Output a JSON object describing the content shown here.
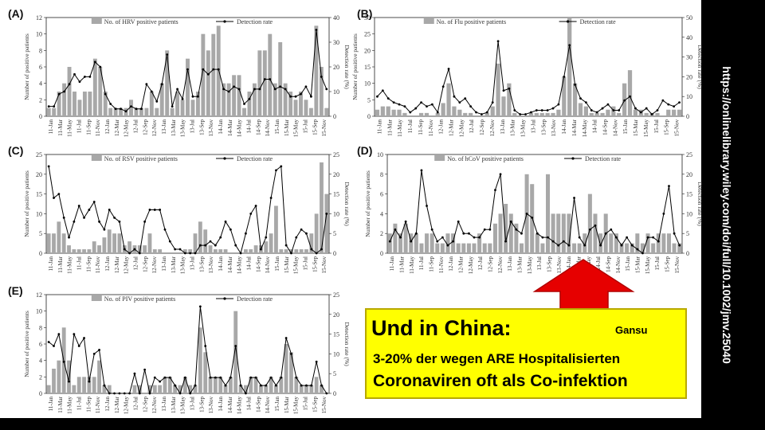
{
  "chart_data": [
    {
      "type": "bar+line",
      "panel_label": "(A)",
      "bar_legend": "No. of HRV positive patients",
      "line_legend": "Detection rate",
      "ylabel_left": "Number of positive patients",
      "ylabel_right": "Detection rate (%)",
      "ylim_left": [
        0,
        12
      ],
      "yticks_left": [
        0,
        2,
        4,
        6,
        8,
        10,
        12
      ],
      "ylim_right": [
        0,
        40
      ],
      "yticks_right": [
        0,
        10,
        20,
        30,
        40
      ],
      "x_tick_labels": [
        "11-Jan",
        "11-Mar",
        "11-May",
        "11-Jul",
        "11-Sep",
        "11-Nov",
        "12-Jan",
        "12-Mar",
        "12-May",
        "12-Jul",
        "12-Sep",
        "12-Nov",
        "13-Jan",
        "13-Mar",
        "13-May",
        "13-Jul",
        "13-Sep",
        "13-Nov",
        "14-Jan",
        "14-Mar",
        "14-May",
        "14-Jul",
        "14-Sep",
        "14-Nov",
        "15-Jan",
        "15-Mar",
        "15-May",
        "15-Jul",
        "15-Sep",
        "15-Nov"
      ],
      "bars": [
        1,
        1,
        3,
        4,
        6,
        3,
        2,
        3,
        3,
        7,
        6,
        3,
        1,
        1,
        1,
        1,
        2,
        1,
        1,
        1,
        3,
        1,
        4,
        8,
        1,
        3,
        2,
        7,
        2,
        3,
        10,
        8,
        10,
        11,
        4,
        4,
        5,
        5,
        1,
        3,
        4,
        8,
        8,
        10,
        4,
        9,
        4,
        3,
        2,
        3,
        2,
        1,
        11,
        6,
        1
      ],
      "line": [
        4,
        4,
        9,
        10,
        13,
        17,
        14,
        16,
        16,
        22,
        20,
        9,
        5,
        3,
        3,
        2,
        4,
        3,
        3,
        13,
        10,
        6,
        13,
        25,
        4,
        11,
        7,
        19,
        8,
        8,
        19,
        17,
        19,
        19,
        11,
        10,
        12,
        11,
        5,
        7,
        11,
        11,
        15,
        15,
        11,
        12,
        11,
        8,
        8,
        9,
        12,
        8,
        35,
        16,
        11
      ]
    },
    {
      "type": "bar+line",
      "panel_label": "(B)",
      "bar_legend": "No. of Flu positive patients",
      "line_legend": "Detection rate",
      "ylabel_left": "Number of positive patients",
      "ylabel_right": "Detection rate (%)",
      "ylim_left": [
        0,
        30
      ],
      "yticks_left": [
        0,
        5,
        10,
        15,
        20,
        25,
        30
      ],
      "ylim_right": [
        0,
        50
      ],
      "yticks_right": [
        0,
        10,
        20,
        30,
        40,
        50
      ],
      "x_tick_labels": [
        "11-Jan",
        "11-Mar",
        "11-May",
        "11-Jul",
        "11-Sep",
        "11-Nov",
        "12-Jan",
        "12-Mar",
        "12-May",
        "12-Jul",
        "12-Sep",
        "12-Nov",
        "13-Jan",
        "13-Mar",
        "13-May",
        "13-Jul",
        "13-Sep",
        "13-Nov",
        "14-Jan",
        "14-Mar",
        "14-May",
        "14-Jul",
        "14-Sep",
        "14-Nov",
        "15-Jan",
        "15-Mar",
        "15-May",
        "15-Jul",
        "15-Sep",
        "15-Nov"
      ],
      "bars": [
        2,
        3,
        3,
        2,
        2,
        1,
        0,
        0,
        1,
        1,
        0,
        1,
        4,
        10,
        3,
        2,
        1,
        1,
        0,
        0,
        1,
        3,
        16,
        6,
        10,
        1,
        0,
        0,
        1,
        1,
        1,
        1,
        1,
        2,
        12,
        30,
        10,
        4,
        3,
        1,
        1,
        1,
        2,
        3,
        1,
        10,
        14,
        2,
        2,
        1,
        1,
        1,
        0,
        2,
        2,
        2
      ],
      "line": [
        10,
        13,
        9,
        7,
        6,
        5,
        2,
        4,
        7,
        5,
        6,
        2,
        15,
        24,
        10,
        7,
        9,
        5,
        2,
        1,
        2,
        7,
        38,
        13,
        14,
        3,
        1,
        1,
        2,
        3,
        3,
        3,
        4,
        6,
        20,
        36,
        16,
        9,
        7,
        3,
        2,
        4,
        6,
        3,
        3,
        8,
        10,
        4,
        2,
        4,
        1,
        3,
        8,
        6,
        5,
        7
      ]
    },
    {
      "type": "bar+line",
      "panel_label": "(C)",
      "bar_legend": "No. of RSV positive patients",
      "line_legend": "Detection rate",
      "ylabel_left": "Number of positive patients",
      "ylabel_right": "Detection rate (%)",
      "ylim_left": [
        0,
        25
      ],
      "yticks_left": [
        0,
        5,
        10,
        15,
        20,
        25
      ],
      "ylim_right": [
        0,
        25
      ],
      "yticks_right": [
        0,
        5,
        10,
        15,
        20,
        25
      ],
      "x_tick_labels": [
        "11-Jan",
        "11-Mar",
        "11-May",
        "11-Jul",
        "11-Sep",
        "11-Nov",
        "12-Jan",
        "12-Mar",
        "12-May",
        "12-Jul",
        "12-Sep",
        "12-Nov",
        "13-Jan",
        "13-Mar",
        "13-May",
        "13-Jul",
        "13-Sep",
        "13-Nov",
        "14-Jan",
        "14-Mar",
        "14-May",
        "14-Jul",
        "14-Sep",
        "14-Nov",
        "15-Jan",
        "15-Mar",
        "15-May",
        "15-Jul",
        "15-Sep",
        "15-Nov"
      ],
      "bars": [
        5,
        5,
        8,
        5,
        2,
        1,
        1,
        1,
        1,
        3,
        2,
        4,
        6,
        5,
        5,
        2,
        3,
        2,
        2,
        2,
        5,
        1,
        1,
        0,
        0,
        0,
        0,
        1,
        1,
        5,
        8,
        6,
        2,
        1,
        1,
        1,
        0,
        0,
        0,
        1,
        1,
        2,
        2,
        3,
        5,
        12,
        1,
        1,
        1,
        1,
        1,
        1,
        5,
        10,
        23,
        15
      ],
      "line": [
        22,
        14,
        15,
        9,
        4,
        8,
        12,
        9,
        11,
        13,
        8,
        6,
        11,
        9,
        8,
        1,
        0,
        1,
        0,
        8,
        11,
        11,
        11,
        6,
        3,
        1,
        1,
        0,
        0,
        0,
        2,
        2,
        3,
        2,
        4,
        8,
        6,
        2,
        0,
        5,
        10,
        12,
        1,
        4,
        14,
        21,
        22,
        2,
        0,
        4,
        6,
        5,
        1,
        0,
        1,
        10
      ]
    },
    {
      "type": "bar+line",
      "panel_label": "(D)",
      "bar_legend": "No. of hCoV positive patients",
      "line_legend": "Detection rate",
      "ylabel_left": "Number of positive patients",
      "ylabel_right": "Detection rate (%)",
      "ylim_left": [
        0,
        10
      ],
      "yticks_left": [
        0,
        2,
        4,
        6,
        8,
        10
      ],
      "ylim_right": [
        0,
        25
      ],
      "yticks_right": [
        0,
        5,
        10,
        15,
        20,
        25
      ],
      "x_tick_labels": [
        "11-Jan",
        "11-Mar",
        "11-May",
        "11-Jul",
        "11-Sep",
        "11-Nov",
        "12-Jan",
        "12-Mar",
        "12-May",
        "12-Jul",
        "12-Sep",
        "12-Nov",
        "13-Jan",
        "13-Mar",
        "13-May",
        "13-Jul",
        "13-Sep",
        "13-Nov",
        "14-Jan",
        "14-Mar",
        "14-May",
        "14-Jul",
        "14-Sep",
        "14-Nov",
        "15-Jan",
        "15-Mar",
        "15-May",
        "15-Jul",
        "15-Sep",
        "15-Nov"
      ],
      "bars": [
        2,
        3,
        2,
        3,
        2,
        2,
        1,
        2,
        2,
        1,
        1,
        2,
        2,
        1,
        1,
        1,
        1,
        2,
        1,
        1,
        3,
        4,
        5,
        4,
        3,
        1,
        8,
        7,
        2,
        1,
        8,
        4,
        4,
        4,
        4,
        1,
        1,
        2,
        6,
        4,
        2,
        4,
        2,
        2,
        1,
        1,
        1,
        2,
        1,
        2,
        1,
        2,
        2,
        2,
        1,
        1
      ],
      "line": [
        3,
        6,
        4,
        8,
        3,
        5,
        21,
        12,
        6,
        3,
        4,
        2,
        3,
        8,
        5,
        5,
        4,
        4,
        6,
        6,
        16,
        20,
        3,
        8,
        6,
        5,
        10,
        9,
        5,
        4,
        4,
        3,
        2,
        3,
        2,
        14,
        4,
        2,
        6,
        7,
        2,
        5,
        6,
        4,
        2,
        4,
        2,
        1,
        0,
        4,
        4,
        3,
        10,
        17,
        5,
        2
      ]
    },
    {
      "type": "bar+line",
      "panel_label": "(E)",
      "bar_legend": "No. of PIV positive patients",
      "line_legend": "Detection rate",
      "ylabel_left": "Number of positive patients",
      "ylabel_right": "Detection rate (%)",
      "ylim_left": [
        0,
        12
      ],
      "yticks_left": [
        0,
        2,
        4,
        6,
        8,
        10,
        12
      ],
      "ylim_right": [
        0,
        25
      ],
      "yticks_right": [
        0,
        5,
        10,
        15,
        20,
        25
      ],
      "x_tick_labels": [
        "11-Jan",
        "11-Mar",
        "11-May",
        "11-Jul",
        "11-Sep",
        "11-Nov",
        "12-Jan",
        "12-Mar",
        "12-May",
        "12-Jul",
        "12-Sep",
        "12-Nov",
        "13-Jan",
        "13-Mar",
        "13-May",
        "13-Jul",
        "13-Sep",
        "13-Nov",
        "14-Jan",
        "14-Mar",
        "14-May",
        "14-Jul",
        "14-Sep",
        "14-Nov",
        "15-Jan",
        "15-Mar",
        "15-May",
        "15-Jul",
        "15-Sep",
        "15-Nov"
      ],
      "bars": [
        1,
        3,
        4,
        8,
        4,
        1,
        2,
        2,
        2,
        2,
        4,
        1,
        1,
        0,
        0,
        0,
        0,
        1,
        1,
        0,
        1,
        1,
        1,
        2,
        2,
        1,
        1,
        2,
        1,
        1,
        8,
        5,
        2,
        2,
        2,
        1,
        2,
        10,
        1,
        1,
        2,
        2,
        1,
        1,
        2,
        1,
        2,
        6,
        5,
        2,
        1,
        1,
        1,
        2,
        1,
        0
      ],
      "line": [
        13,
        12,
        15,
        8,
        3,
        15,
        12,
        14,
        3,
        10,
        11,
        2,
        0,
        0,
        0,
        0,
        0,
        5,
        0,
        6,
        0,
        4,
        3,
        4,
        4,
        2,
        0,
        4,
        0,
        2,
        22,
        12,
        4,
        4,
        4,
        2,
        4,
        12,
        2,
        0,
        4,
        4,
        2,
        2,
        4,
        2,
        4,
        14,
        10,
        4,
        2,
        2,
        2,
        8,
        2,
        0
      ]
    }
  ],
  "callout": {
    "title": "Und in China:",
    "tag": "Gansu",
    "line1": "3-20% der wegen ARE Hospitalisierten",
    "line2": "Coronaviren oft als Co-infektion"
  },
  "source_url": "https://onlinelibrary.wiley.com/doi/full/10.1002/jmv.25040",
  "colors": {
    "bar": "#a8a8a8",
    "line": "#000000",
    "callout_bg": "#ffff00",
    "arrow": "#e60000",
    "arrow_edge": "#b00000"
  }
}
